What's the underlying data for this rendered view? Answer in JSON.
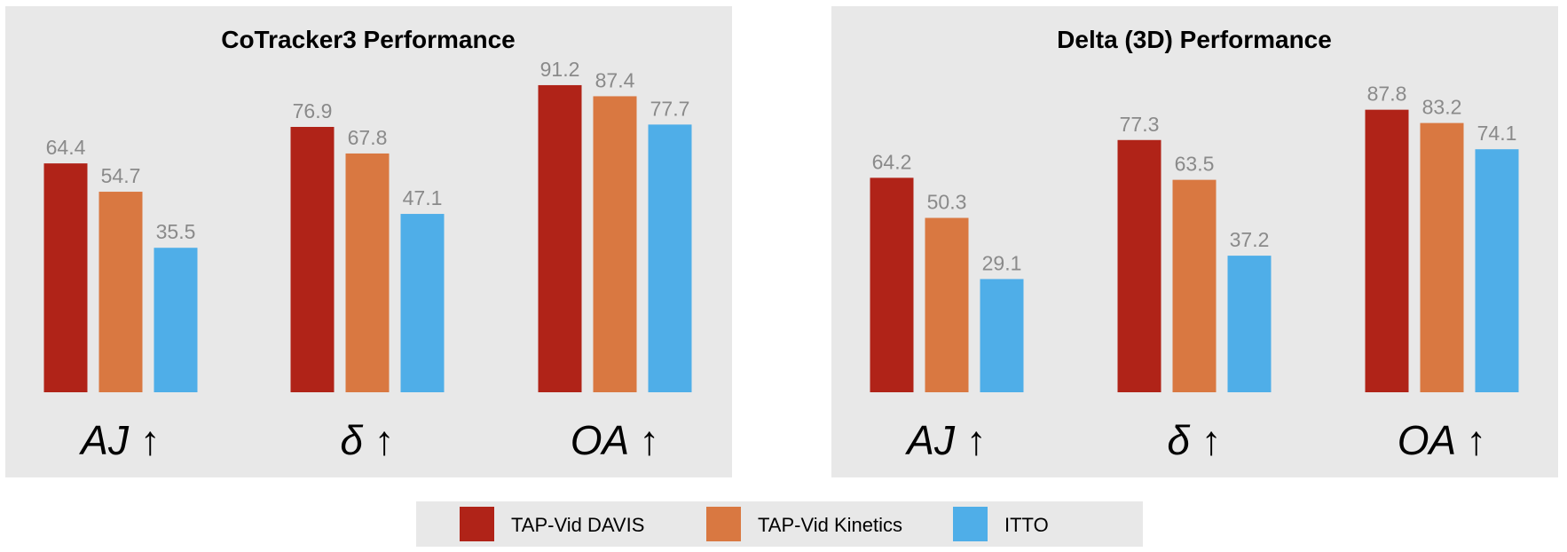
{
  "colors": {
    "panel": "#e8e8e8",
    "series": [
      "#b02318",
      "#d97841",
      "#4faee8"
    ]
  },
  "legend": [
    "TAP-Vid DAVIS",
    "TAP-Vid Kinetics",
    "ITTO"
  ],
  "chart_data": [
    {
      "type": "bar",
      "title": "CoTracker3 Performance",
      "categories": [
        "AJ ↑",
        "δ ↑",
        "OA ↑"
      ],
      "series": [
        {
          "name": "TAP-Vid DAVIS",
          "values": [
            64.4,
            76.9,
            91.2
          ]
        },
        {
          "name": "TAP-Vid Kinetics",
          "values": [
            54.7,
            67.8,
            87.4
          ]
        },
        {
          "name": "ITTO",
          "values": [
            35.5,
            47.1,
            77.7
          ]
        }
      ],
      "labels": [
        [
          "64.4",
          "76.9",
          "91.2"
        ],
        [
          "54.7",
          "67.8",
          "87.4"
        ],
        [
          "35.5",
          "47.1",
          "77.7"
        ]
      ],
      "grid": false,
      "legend": "bottom"
    },
    {
      "type": "bar",
      "title": "Delta (3D) Performance",
      "categories": [
        "AJ ↑",
        "δ ↑",
        "OA ↑"
      ],
      "series": [
        {
          "name": "TAP-Vid DAVIS",
          "values": [
            64.2,
            77.3,
            87.8
          ]
        },
        {
          "name": "TAP-Vid Kinetics",
          "values": [
            50.3,
            63.5,
            83.2
          ]
        },
        {
          "name": "ITTO",
          "values": [
            29.1,
            37.2,
            74.1
          ]
        }
      ],
      "labels": [
        [
          "64.2",
          "77.3",
          "87.8"
        ],
        [
          "50.3",
          "63.5",
          "83.2"
        ],
        [
          "29.1",
          "37.2",
          "74.1"
        ]
      ],
      "grid": false,
      "legend": "bottom"
    }
  ]
}
